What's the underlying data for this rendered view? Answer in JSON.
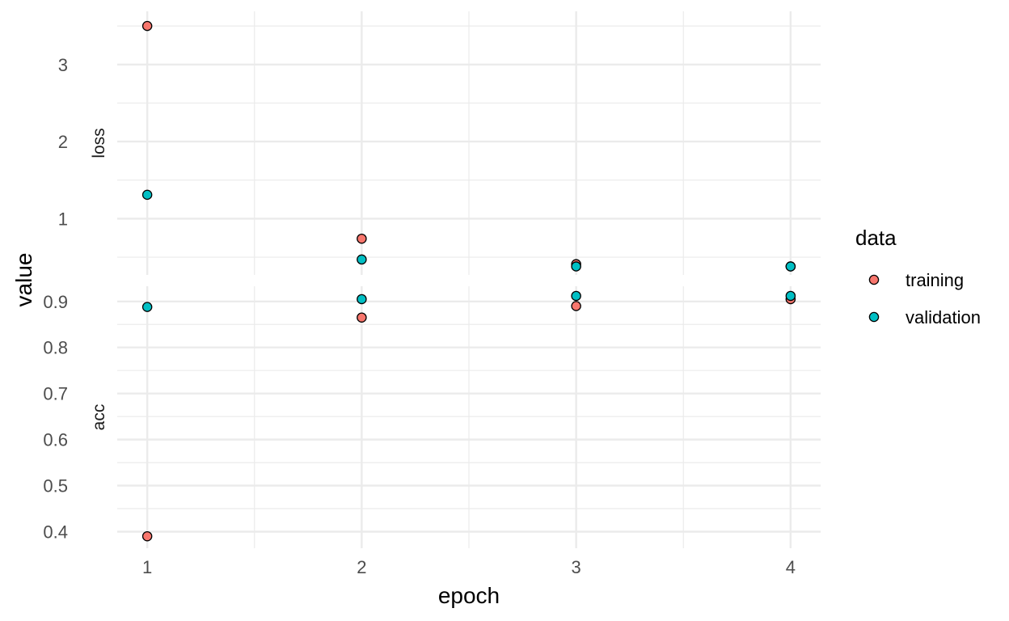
{
  "chart_data": {
    "type": "scatter",
    "facet_layout": "stacked vertically, free y scales",
    "xlabel": "epoch",
    "ylabel": "value",
    "x_ticks": [
      1,
      2,
      3,
      4
    ],
    "xlim": [
      0.86,
      4.14
    ],
    "grid": true,
    "legend": {
      "title": "data",
      "placement": "right",
      "entries": [
        {
          "name": "training",
          "color": "#F8766D"
        },
        {
          "name": "validation",
          "color": "#00BFC4"
        }
      ]
    },
    "facets": [
      {
        "label": "loss",
        "ylim": [
          0.27,
          3.69
        ],
        "y_ticks": [
          1,
          2,
          3
        ],
        "y_tick_labels": [
          "1",
          "2",
          "3"
        ],
        "series": [
          {
            "name": "training",
            "x": [
              1,
              2,
              3,
              4
            ],
            "y": [
              3.5,
              0.74,
              0.41,
              0.38
            ]
          },
          {
            "name": "validation",
            "x": [
              1,
              2,
              3,
              4
            ],
            "y": [
              1.31,
              0.47,
              0.38,
              0.38
            ]
          }
        ]
      },
      {
        "label": "acc",
        "ylim": [
          0.364,
          0.933
        ],
        "y_ticks": [
          0.4,
          0.5,
          0.6,
          0.7,
          0.8,
          0.9
        ],
        "y_tick_labels": [
          "0.4",
          "0.5",
          "0.6",
          "0.7",
          "0.8",
          "0.9"
        ],
        "series": [
          {
            "name": "training",
            "x": [
              1,
              2,
              3,
              4
            ],
            "y": [
              0.39,
              0.865,
              0.89,
              0.905
            ]
          },
          {
            "name": "validation",
            "x": [
              1,
              2,
              3,
              4
            ],
            "y": [
              0.888,
              0.905,
              0.912,
              0.912
            ]
          }
        ]
      }
    ]
  }
}
